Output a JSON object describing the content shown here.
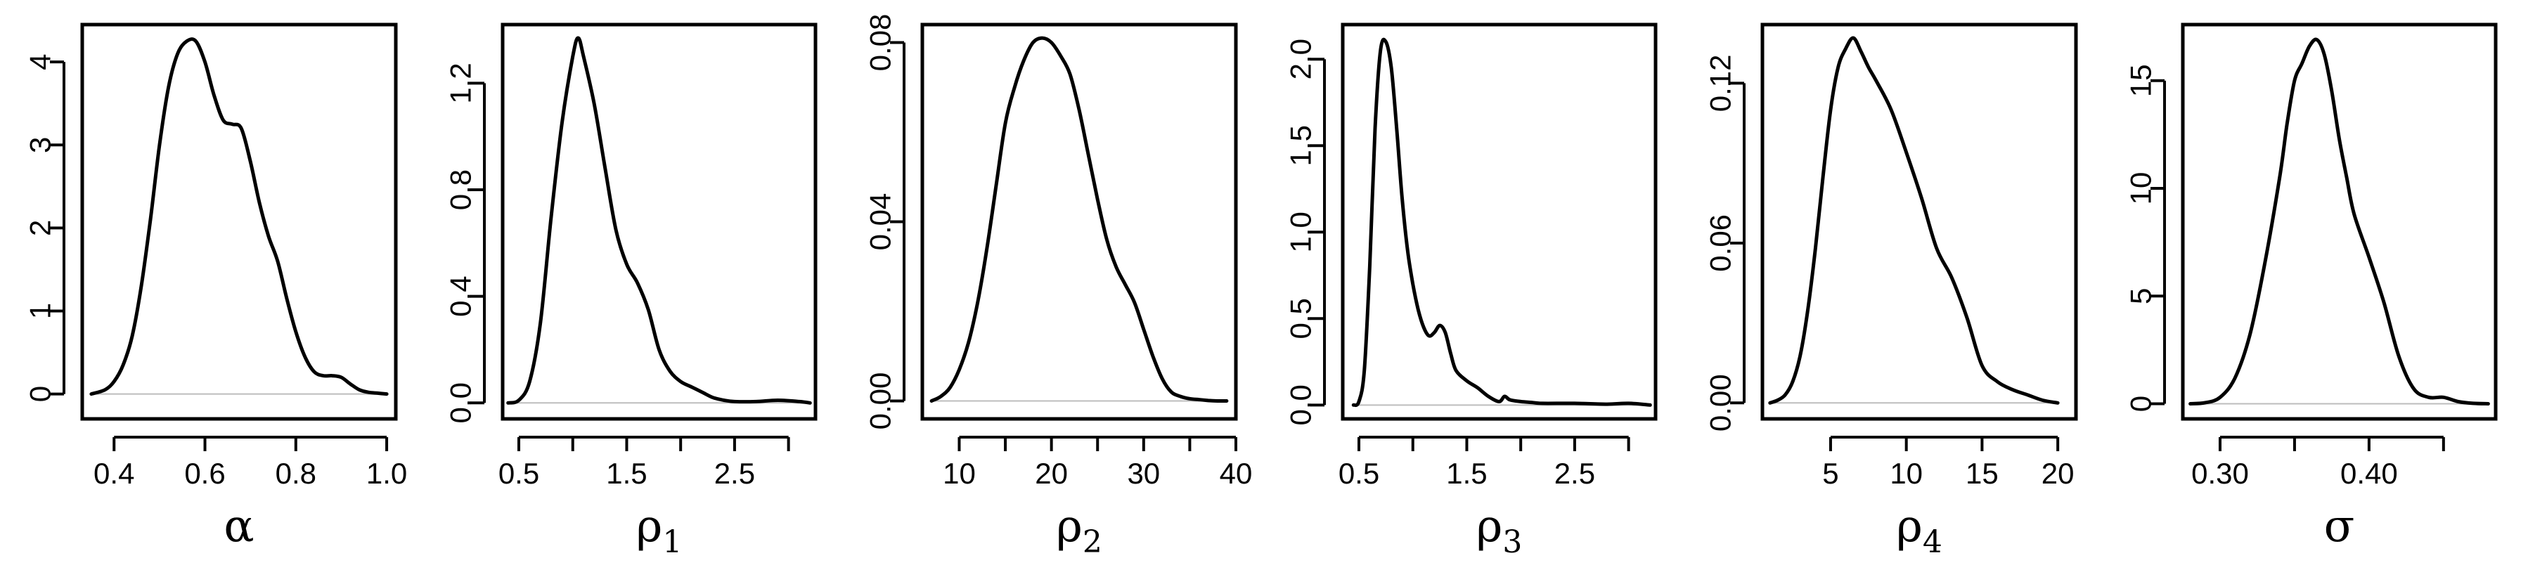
{
  "chart_data": [
    {
      "type": "line",
      "xlabel": "α",
      "xlabel_subscript": "",
      "xlim": [
        0.33,
        1.02
      ],
      "ylim": [
        -0.3,
        4.45
      ],
      "xticks": [
        0.4,
        0.6,
        0.8,
        1.0
      ],
      "xtick_labels": [
        "0.4",
        "0.6",
        "0.8",
        "1.0"
      ],
      "yticks": [
        0,
        1,
        2,
        3,
        4
      ],
      "ytick_labels": [
        "0",
        "1",
        "2",
        "3",
        "4"
      ],
      "x": [
        0.35,
        0.38,
        0.4,
        0.42,
        0.44,
        0.46,
        0.48,
        0.5,
        0.52,
        0.54,
        0.56,
        0.58,
        0.6,
        0.62,
        0.64,
        0.66,
        0.68,
        0.7,
        0.72,
        0.74,
        0.76,
        0.78,
        0.8,
        0.82,
        0.84,
        0.86,
        0.88,
        0.9,
        0.92,
        0.94,
        0.96,
        0.98,
        1.0
      ],
      "y": [
        0.0,
        0.05,
        0.15,
        0.35,
        0.7,
        1.3,
        2.1,
        3.0,
        3.7,
        4.1,
        4.25,
        4.25,
        4.0,
        3.6,
        3.3,
        3.25,
        3.2,
        2.8,
        2.3,
        1.9,
        1.6,
        1.15,
        0.75,
        0.45,
        0.27,
        0.22,
        0.22,
        0.2,
        0.12,
        0.05,
        0.02,
        0.01,
        0.0
      ]
    },
    {
      "type": "line",
      "xlabel": "ρ",
      "xlabel_subscript": "1",
      "xlim": [
        0.35,
        3.25
      ],
      "ylim": [
        -0.06,
        1.42
      ],
      "xticks": [
        0.5,
        1.0,
        1.5,
        2.0,
        2.5,
        3.0
      ],
      "xtick_labels": [
        "0.5",
        "",
        "1.5",
        "",
        "2.5",
        ""
      ],
      "yticks": [
        0.0,
        0.4,
        0.8,
        1.2
      ],
      "ytick_labels": [
        "0.0",
        "0.4",
        "0.8",
        "1.2"
      ],
      "x": [
        0.4,
        0.5,
        0.6,
        0.7,
        0.8,
        0.9,
        1.0,
        1.05,
        1.1,
        1.2,
        1.3,
        1.4,
        1.5,
        1.6,
        1.7,
        1.8,
        1.9,
        2.0,
        2.1,
        2.2,
        2.3,
        2.4,
        2.5,
        2.7,
        2.9,
        3.1,
        3.2
      ],
      "y": [
        0.0,
        0.01,
        0.08,
        0.3,
        0.7,
        1.05,
        1.3,
        1.37,
        1.3,
        1.12,
        0.88,
        0.65,
        0.52,
        0.45,
        0.35,
        0.2,
        0.12,
        0.08,
        0.06,
        0.04,
        0.02,
        0.01,
        0.005,
        0.005,
        0.01,
        0.005,
        0.0
      ]
    },
    {
      "type": "line",
      "xlabel": "ρ",
      "xlabel_subscript": "2",
      "xlim": [
        6,
        40
      ],
      "ylim": [
        -0.004,
        0.084
      ],
      "xticks": [
        10,
        15,
        20,
        25,
        30,
        35,
        40
      ],
      "xtick_labels": [
        "10",
        "",
        "20",
        "",
        "30",
        "",
        "40"
      ],
      "yticks": [
        0.0,
        0.04,
        0.08
      ],
      "ytick_labels": [
        "0.00",
        "0.04",
        "0.08"
      ],
      "x": [
        7,
        8,
        9,
        10,
        11,
        12,
        13,
        14,
        15,
        16,
        17,
        18,
        19,
        20,
        21,
        22,
        23,
        24,
        25,
        26,
        27,
        28,
        29,
        30,
        31,
        32,
        33,
        34,
        35,
        36,
        37,
        38,
        39
      ],
      "y": [
        0.0,
        0.001,
        0.003,
        0.007,
        0.013,
        0.022,
        0.034,
        0.048,
        0.062,
        0.07,
        0.076,
        0.08,
        0.081,
        0.08,
        0.077,
        0.073,
        0.065,
        0.055,
        0.045,
        0.036,
        0.03,
        0.026,
        0.022,
        0.016,
        0.01,
        0.005,
        0.002,
        0.001,
        0.0005,
        0.0003,
        0.0001,
        0.0,
        0.0
      ]
    },
    {
      "type": "line",
      "xlabel": "ρ",
      "xlabel_subscript": "3",
      "xlim": [
        0.35,
        3.25
      ],
      "ylim": [
        -0.08,
        2.2
      ],
      "xticks": [
        0.5,
        1.0,
        1.5,
        2.0,
        2.5,
        3.0
      ],
      "xtick_labels": [
        "0.5",
        "",
        "1.5",
        "",
        "2.5",
        ""
      ],
      "yticks": [
        0.0,
        0.5,
        1.0,
        1.5,
        2.0
      ],
      "ytick_labels": [
        "0.0",
        "0.5",
        "1.0",
        "1.5",
        "2.0"
      ],
      "x": [
        0.45,
        0.5,
        0.55,
        0.6,
        0.65,
        0.7,
        0.75,
        0.8,
        0.85,
        0.9,
        0.95,
        1.0,
        1.05,
        1.1,
        1.15,
        1.2,
        1.25,
        1.3,
        1.35,
        1.4,
        1.5,
        1.6,
        1.7,
        1.8,
        1.85,
        1.9,
        2.0,
        2.1,
        2.2,
        2.5,
        2.8,
        3.0,
        3.2
      ],
      "y": [
        0.0,
        0.02,
        0.2,
        0.8,
        1.6,
        2.05,
        2.1,
        1.95,
        1.6,
        1.2,
        0.9,
        0.7,
        0.55,
        0.45,
        0.4,
        0.42,
        0.46,
        0.42,
        0.3,
        0.2,
        0.14,
        0.1,
        0.05,
        0.02,
        0.05,
        0.03,
        0.02,
        0.015,
        0.01,
        0.01,
        0.005,
        0.01,
        0.0
      ]
    },
    {
      "type": "line",
      "xlabel": "ρ",
      "xlabel_subscript": "4",
      "xlim": [
        0.5,
        21.2
      ],
      "ylim": [
        -0.006,
        0.142
      ],
      "xticks": [
        5,
        10,
        15,
        20
      ],
      "xtick_labels": [
        "5",
        "10",
        "15",
        "20"
      ],
      "yticks": [
        0.0,
        0.06,
        0.12
      ],
      "ytick_labels": [
        "0.00",
        "0.06",
        "0.12"
      ],
      "x": [
        1.0,
        1.5,
        2.0,
        2.5,
        3.0,
        3.5,
        4.0,
        4.5,
        5.0,
        5.5,
        6.0,
        6.5,
        7.0,
        7.5,
        8.0,
        9.0,
        10.0,
        11.0,
        12.0,
        13.0,
        14.0,
        15.0,
        16.0,
        17.0,
        18.0,
        19.0,
        20.0
      ],
      "y": [
        0.0,
        0.001,
        0.003,
        0.008,
        0.018,
        0.035,
        0.058,
        0.085,
        0.11,
        0.126,
        0.133,
        0.137,
        0.132,
        0.126,
        0.121,
        0.11,
        0.094,
        0.077,
        0.058,
        0.047,
        0.032,
        0.014,
        0.008,
        0.005,
        0.003,
        0.001,
        0.0
      ]
    },
    {
      "type": "line",
      "xlabel": "σ",
      "xlabel_subscript": "",
      "xlim": [
        0.275,
        0.485
      ],
      "ylim": [
        -0.7,
        17.6
      ],
      "xticks": [
        0.3,
        0.35,
        0.4,
        0.45
      ],
      "xtick_labels": [
        "0.30",
        "",
        "0.40",
        ""
      ],
      "yticks": [
        0,
        5,
        10,
        15
      ],
      "ytick_labels": [
        "0",
        "5",
        "10",
        "15"
      ],
      "x": [
        0.28,
        0.29,
        0.3,
        0.31,
        0.32,
        0.33,
        0.34,
        0.345,
        0.35,
        0.355,
        0.36,
        0.365,
        0.37,
        0.375,
        0.38,
        0.385,
        0.39,
        0.4,
        0.41,
        0.42,
        0.43,
        0.44,
        0.45,
        0.46,
        0.47,
        0.48
      ],
      "y": [
        0.0,
        0.05,
        0.3,
        1.2,
        3.2,
        6.5,
        10.5,
        13.0,
        15.0,
        15.8,
        16.6,
        16.9,
        16.2,
        14.5,
        12.3,
        10.5,
        8.8,
        6.8,
        4.7,
        2.2,
        0.7,
        0.3,
        0.3,
        0.1,
        0.02,
        0.0
      ]
    }
  ]
}
